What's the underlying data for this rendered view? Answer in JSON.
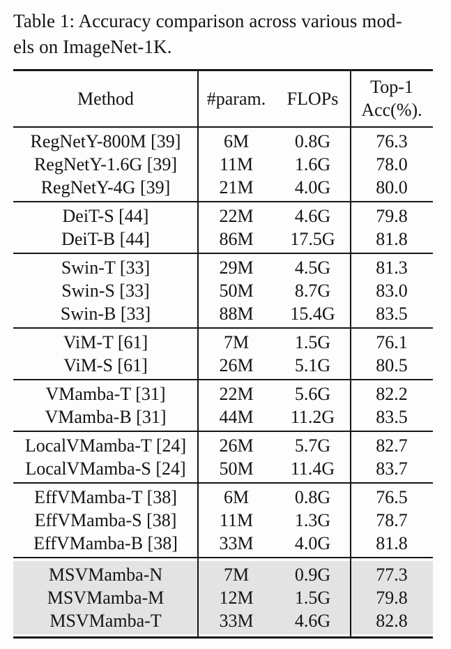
{
  "caption": {
    "line1": "Table 1: Accuracy comparison across various mod-",
    "line2": "els on ImageNet-1K."
  },
  "table": {
    "headers": {
      "method": "Method",
      "params": "#param.",
      "flops": "FLOPs",
      "acc_line1": "Top-1",
      "acc_line2": "Acc(%)."
    },
    "sections": [
      {
        "highlight": false,
        "rows": [
          {
            "method": "RegNetY-800M [39]",
            "params": "6M",
            "flops": "0.8G",
            "acc": "76.3"
          },
          {
            "method": "RegNetY-1.6G [39]",
            "params": "11M",
            "flops": "1.6G",
            "acc": "78.0"
          },
          {
            "method": "RegNetY-4G [39]",
            "params": "21M",
            "flops": "4.0G",
            "acc": "80.0"
          }
        ]
      },
      {
        "highlight": false,
        "rows": [
          {
            "method": "DeiT-S [44]",
            "params": "22M",
            "flops": "4.6G",
            "acc": "79.8"
          },
          {
            "method": "DeiT-B [44]",
            "params": "86M",
            "flops": "17.5G",
            "acc": "81.8"
          }
        ]
      },
      {
        "highlight": false,
        "rows": [
          {
            "method": "Swin-T [33]",
            "params": "29M",
            "flops": "4.5G",
            "acc": "81.3"
          },
          {
            "method": "Swin-S [33]",
            "params": "50M",
            "flops": "8.7G",
            "acc": "83.0"
          },
          {
            "method": "Swin-B [33]",
            "params": "88M",
            "flops": "15.4G",
            "acc": "83.5"
          }
        ]
      },
      {
        "highlight": false,
        "rows": [
          {
            "method": "ViM-T [61]",
            "params": "7M",
            "flops": "1.5G",
            "acc": "76.1"
          },
          {
            "method": "ViM-S [61]",
            "params": "26M",
            "flops": "5.1G",
            "acc": "80.5"
          }
        ]
      },
      {
        "highlight": false,
        "rows": [
          {
            "method": "VMamba-T [31]",
            "params": "22M",
            "flops": "5.6G",
            "acc": "82.2"
          },
          {
            "method": "VMamba-B [31]",
            "params": "44M",
            "flops": "11.2G",
            "acc": "83.5"
          }
        ]
      },
      {
        "highlight": false,
        "rows": [
          {
            "method": "LocalVMamba-T [24]",
            "params": "26M",
            "flops": "5.7G",
            "acc": "82.7"
          },
          {
            "method": "LocalVMamba-S [24]",
            "params": "50M",
            "flops": "11.4G",
            "acc": "83.7"
          }
        ]
      },
      {
        "highlight": false,
        "rows": [
          {
            "method": "EffVMamba-T [38]",
            "params": "6M",
            "flops": "0.8G",
            "acc": "76.5"
          },
          {
            "method": "EffVMamba-S [38]",
            "params": "11M",
            "flops": "1.3G",
            "acc": "78.7"
          },
          {
            "method": "EffVMamba-B [38]",
            "params": "33M",
            "flops": "4.0G",
            "acc": "81.8"
          }
        ]
      },
      {
        "highlight": true,
        "rows": [
          {
            "method": "MSVMamba-N",
            "params": "7M",
            "flops": "0.9G",
            "acc": "77.3"
          },
          {
            "method": "MSVMamba-M",
            "params": "12M",
            "flops": "1.5G",
            "acc": "79.8"
          },
          {
            "method": "MSVMamba-T",
            "params": "33M",
            "flops": "4.6G",
            "acc": "82.8"
          }
        ]
      }
    ]
  },
  "chart_data": {
    "type": "table",
    "title": "Table 1: Accuracy comparison across various models on ImageNet-1K.",
    "columns": [
      "Method",
      "#param.",
      "FLOPs",
      "Top-1 Acc(%)."
    ],
    "rows": [
      [
        "RegNetY-800M [39]",
        "6M",
        "0.8G",
        76.3
      ],
      [
        "RegNetY-1.6G [39]",
        "11M",
        "1.6G",
        78.0
      ],
      [
        "RegNetY-4G [39]",
        "21M",
        "4.0G",
        80.0
      ],
      [
        "DeiT-S [44]",
        "22M",
        "4.6G",
        79.8
      ],
      [
        "DeiT-B [44]",
        "86M",
        "17.5G",
        81.8
      ],
      [
        "Swin-T [33]",
        "29M",
        "4.5G",
        81.3
      ],
      [
        "Swin-S [33]",
        "50M",
        "8.7G",
        83.0
      ],
      [
        "Swin-B [33]",
        "88M",
        "15.4G",
        83.5
      ],
      [
        "ViM-T [61]",
        "7M",
        "1.5G",
        76.1
      ],
      [
        "ViM-S [61]",
        "26M",
        "5.1G",
        80.5
      ],
      [
        "VMamba-T [31]",
        "22M",
        "5.6G",
        82.2
      ],
      [
        "VMamba-B [31]",
        "44M",
        "11.2G",
        83.5
      ],
      [
        "LocalVMamba-T [24]",
        "26M",
        "5.7G",
        82.7
      ],
      [
        "LocalVMamba-S [24]",
        "50M",
        "11.4G",
        83.7
      ],
      [
        "EffVMamba-T [38]",
        "6M",
        "0.8G",
        76.5
      ],
      [
        "EffVMamba-S [38]",
        "11M",
        "1.3G",
        78.7
      ],
      [
        "EffVMamba-B [38]",
        "33M",
        "4.0G",
        81.8
      ],
      [
        "MSVMamba-N",
        "7M",
        "0.9G",
        77.3
      ],
      [
        "MSVMamba-M",
        "12M",
        "1.5G",
        79.8
      ],
      [
        "MSVMamba-T",
        "33M",
        "4.6G",
        82.8
      ]
    ],
    "highlighted_rows": [
      "MSVMamba-N",
      "MSVMamba-M",
      "MSVMamba-T"
    ]
  },
  "colors": {
    "highlight": "#e3e3e3",
    "rule": "#161616",
    "text": "#141414",
    "page_background": "#fdfdfd"
  }
}
